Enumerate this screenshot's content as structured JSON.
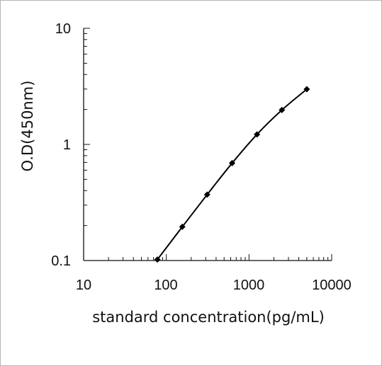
{
  "chart_data": {
    "type": "line",
    "title": "",
    "xlabel": "standard concentration(pg/mL)",
    "ylabel": "O.D(450nm)",
    "xscale": "log",
    "yscale": "log",
    "xlim": [
      10,
      10000
    ],
    "ylim": [
      0.1,
      10
    ],
    "x_ticks": [
      "10",
      "100",
      "1000",
      "10000"
    ],
    "y_ticks": [
      "10",
      "1",
      "0.1"
    ],
    "grid": false,
    "legend": "none",
    "series": [
      {
        "x": [
          78,
          156,
          312,
          625,
          1250,
          2500,
          5000
        ],
        "y": [
          0.102,
          0.195,
          0.37,
          0.69,
          1.22,
          1.98,
          2.99
        ],
        "marker": "diamond",
        "color": "#000000"
      }
    ]
  }
}
